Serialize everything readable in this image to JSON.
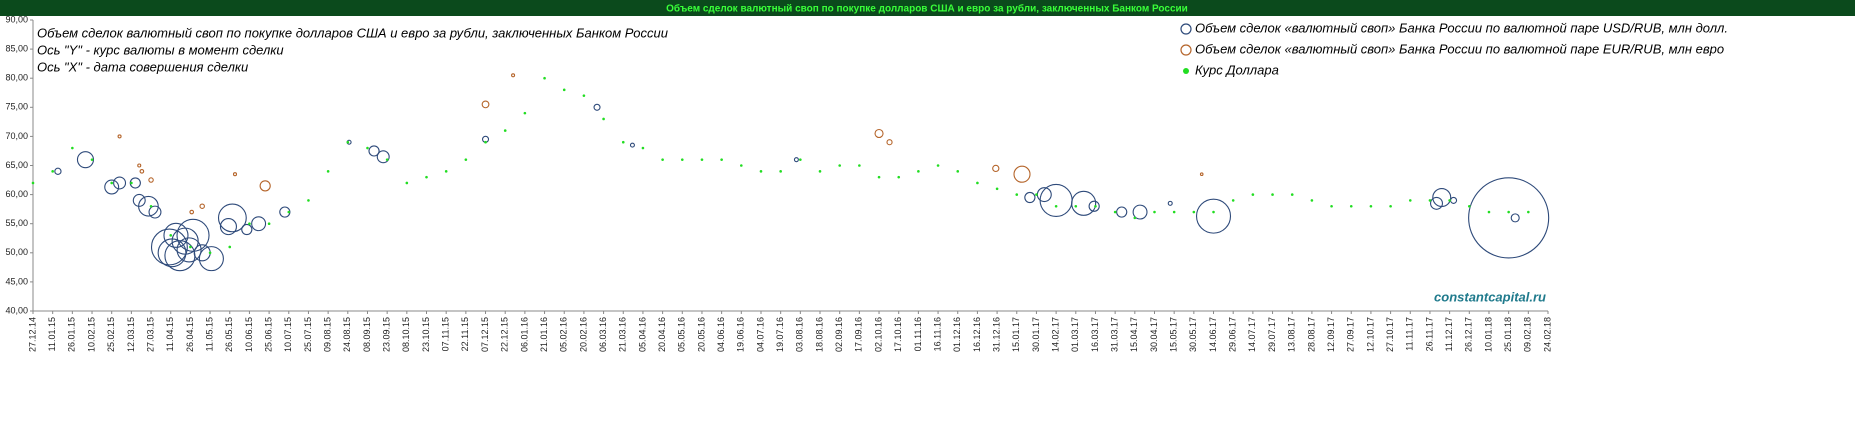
{
  "chart_data": {
    "type": "bubble",
    "title": "Объем сделок валютный своп по покупке долларов США и евро за рубли, заключенных Банком России",
    "annotations": [
      "Объем сделок валютный своп по покупке долларов США и евро за рубли, заключенных Банком России",
      "Ось \"Y\" -  курс валюты в момент сделки",
      "Ось \"X\" -  дата совершения сделки"
    ],
    "watermark": "constantcapital.ru",
    "ylim": [
      40,
      90
    ],
    "yticks": [
      {
        "value": 40,
        "label": "40,00"
      },
      {
        "value": 45,
        "label": "45,00"
      },
      {
        "value": 50,
        "label": "50,00"
      },
      {
        "value": 55,
        "label": "55,00"
      },
      {
        "value": 60,
        "label": "60,00"
      },
      {
        "value": 65,
        "label": "65,00"
      },
      {
        "value": 70,
        "label": "70,00"
      },
      {
        "value": 75,
        "label": "75,00"
      },
      {
        "value": 80,
        "label": "80,00"
      },
      {
        "value": 85,
        "label": "85,00"
      },
      {
        "value": 90,
        "label": "90,00"
      }
    ],
    "xlim": [
      "2014-12-27",
      "2018-02-24"
    ],
    "xticks": [
      {
        "value": "2014-12-27",
        "label": "27.12.14"
      },
      {
        "value": "2015-01-11",
        "label": "11.01.15"
      },
      {
        "value": "2015-01-26",
        "label": "26.01.15"
      },
      {
        "value": "2015-02-10",
        "label": "10.02.15"
      },
      {
        "value": "2015-02-25",
        "label": "25.02.15"
      },
      {
        "value": "2015-03-12",
        "label": "12.03.15"
      },
      {
        "value": "2015-03-27",
        "label": "27.03.15"
      },
      {
        "value": "2015-04-11",
        "label": "11.04.15"
      },
      {
        "value": "2015-04-26",
        "label": "26.04.15"
      },
      {
        "value": "2015-05-11",
        "label": "11.05.15"
      },
      {
        "value": "2015-05-26",
        "label": "26.05.15"
      },
      {
        "value": "2015-06-10",
        "label": "10.06.15"
      },
      {
        "value": "2015-06-25",
        "label": "25.06.15"
      },
      {
        "value": "2015-07-10",
        "label": "10.07.15"
      },
      {
        "value": "2015-07-25",
        "label": "25.07.15"
      },
      {
        "value": "2015-08-09",
        "label": "09.08.15"
      },
      {
        "value": "2015-08-24",
        "label": "24.08.15"
      },
      {
        "value": "2015-09-08",
        "label": "08.09.15"
      },
      {
        "value": "2015-09-23",
        "label": "23.09.15"
      },
      {
        "value": "2015-10-08",
        "label": "08.10.15"
      },
      {
        "value": "2015-10-23",
        "label": "23.10.15"
      },
      {
        "value": "2015-11-07",
        "label": "07.11.15"
      },
      {
        "value": "2015-11-22",
        "label": "22.11.15"
      },
      {
        "value": "2015-12-07",
        "label": "07.12.15"
      },
      {
        "value": "2015-12-22",
        "label": "22.12.15"
      },
      {
        "value": "2016-01-06",
        "label": "06.01.16"
      },
      {
        "value": "2016-01-21",
        "label": "21.01.16"
      },
      {
        "value": "2016-02-05",
        "label": "05.02.16"
      },
      {
        "value": "2016-02-20",
        "label": "20.02.16"
      },
      {
        "value": "2016-03-06",
        "label": "06.03.16"
      },
      {
        "value": "2016-03-21",
        "label": "21.03.16"
      },
      {
        "value": "2016-04-05",
        "label": "05.04.16"
      },
      {
        "value": "2016-04-20",
        "label": "20.04.16"
      },
      {
        "value": "2016-05-05",
        "label": "05.05.16"
      },
      {
        "value": "2016-05-20",
        "label": "20.05.16"
      },
      {
        "value": "2016-06-04",
        "label": "04.06.16"
      },
      {
        "value": "2016-06-19",
        "label": "19.06.16"
      },
      {
        "value": "2016-07-04",
        "label": "04.07.16"
      },
      {
        "value": "2016-07-19",
        "label": "19.07.16"
      },
      {
        "value": "2016-08-03",
        "label": "03.08.16"
      },
      {
        "value": "2016-08-18",
        "label": "18.08.16"
      },
      {
        "value": "2016-09-02",
        "label": "02.09.16"
      },
      {
        "value": "2016-09-17",
        "label": "17.09.16"
      },
      {
        "value": "2016-10-02",
        "label": "02.10.16"
      },
      {
        "value": "2016-10-17",
        "label": "17.10.16"
      },
      {
        "value": "2016-11-01",
        "label": "01.11.16"
      },
      {
        "value": "2016-11-16",
        "label": "16.11.16"
      },
      {
        "value": "2016-12-01",
        "label": "01.12.16"
      },
      {
        "value": "2016-12-16",
        "label": "16.12.16"
      },
      {
        "value": "2016-12-31",
        "label": "31.12.16"
      },
      {
        "value": "2017-01-15",
        "label": "15.01.17"
      },
      {
        "value": "2017-01-30",
        "label": "30.01.17"
      },
      {
        "value": "2017-02-14",
        "label": "14.02.17"
      },
      {
        "value": "2017-03-01",
        "label": "01.03.17"
      },
      {
        "value": "2017-03-16",
        "label": "16.03.17"
      },
      {
        "value": "2017-03-31",
        "label": "31.03.17"
      },
      {
        "value": "2017-04-15",
        "label": "15.04.17"
      },
      {
        "value": "2017-04-30",
        "label": "30.04.17"
      },
      {
        "value": "2017-05-15",
        "label": "15.05.17"
      },
      {
        "value": "2017-05-30",
        "label": "30.05.17"
      },
      {
        "value": "2017-06-14",
        "label": "14.06.17"
      },
      {
        "value": "2017-06-29",
        "label": "29.06.17"
      },
      {
        "value": "2017-07-14",
        "label": "14.07.17"
      },
      {
        "value": "2017-07-29",
        "label": "29.07.17"
      },
      {
        "value": "2017-08-13",
        "label": "13.08.17"
      },
      {
        "value": "2017-08-28",
        "label": "28.08.17"
      },
      {
        "value": "2017-09-12",
        "label": "12.09.17"
      },
      {
        "value": "2017-09-27",
        "label": "27.09.17"
      },
      {
        "value": "2017-10-12",
        "label": "12.10.17"
      },
      {
        "value": "2017-10-27",
        "label": "27.10.17"
      },
      {
        "value": "2017-11-11",
        "label": "11.11.17"
      },
      {
        "value": "2017-11-26",
        "label": "26.11.17"
      },
      {
        "value": "2017-12-11",
        "label": "11.12.17"
      },
      {
        "value": "2017-12-26",
        "label": "26.12.17"
      },
      {
        "value": "2018-01-10",
        "label": "10.01.18"
      },
      {
        "value": "2018-01-25",
        "label": "25.01.18"
      },
      {
        "value": "2018-02-09",
        "label": "09.02.18"
      },
      {
        "value": "2018-02-24",
        "label": "24.02.18"
      }
    ],
    "series": [
      {
        "name": "Объем сделок «валютный своп» Банка  России по валютной паре USD/RUB, млн долл.",
        "color": "#2e4a7a",
        "marker": "ring",
        "x": [
          "2015-01-15",
          "2015-02-05",
          "2015-02-25",
          "2015-03-03",
          "2015-03-15",
          "2015-03-18",
          "2015-03-25",
          "2015-03-30",
          "2015-04-10",
          "2015-04-12",
          "2015-04-15",
          "2015-04-18",
          "2015-04-22",
          "2015-04-25",
          "2015-04-28",
          "2015-05-05",
          "2015-05-12",
          "2015-05-25",
          "2015-05-28",
          "2015-06-08",
          "2015-06-17",
          "2015-07-07",
          "2015-08-25",
          "2015-09-13",
          "2015-09-20",
          "2015-12-07",
          "2016-03-01",
          "2016-03-28",
          "2016-07-31",
          "2017-01-25",
          "2017-02-05",
          "2017-02-14",
          "2017-03-07",
          "2017-03-15",
          "2017-04-05",
          "2017-04-19",
          "2017-05-12",
          "2017-06-14",
          "2017-12-01",
          "2017-12-05",
          "2017-12-14",
          "2018-01-25",
          "2018-01-30"
        ],
        "y": [
          64,
          66,
          61.3,
          62,
          62,
          59,
          58,
          57,
          51,
          50,
          53,
          49.5,
          52,
          50.5,
          53,
          50,
          49,
          54.5,
          56,
          54,
          55,
          57,
          69,
          67.5,
          66.5,
          69.5,
          75,
          68.5,
          66,
          59.5,
          60,
          59,
          58.5,
          58,
          57,
          57,
          58.5,
          56.3,
          58.5,
          59.5,
          59,
          56,
          56
        ],
        "sizes": [
          30,
          200,
          150,
          110,
          80,
          110,
          300,
          110,
          1000,
          600,
          450,
          700,
          530,
          450,
          800,
          200,
          450,
          200,
          600,
          80,
          150,
          80,
          12,
          80,
          110,
          28,
          28,
          12,
          12,
          80,
          150,
          800,
          450,
          80,
          80,
          150,
          12,
          900,
          110,
          250,
          28,
          5000,
          50
        ]
      },
      {
        "name": "Объем сделок «валютный своп» Банка  России по валютной паре EUR/RUB, млн евро",
        "color": "#b5652b",
        "marker": "ring",
        "x": [
          "2015-03-03",
          "2015-03-18",
          "2015-03-20",
          "2015-03-27",
          "2015-04-27",
          "2015-05-05",
          "2015-05-30",
          "2015-06-22",
          "2015-12-07",
          "2015-12-28",
          "2016-10-02",
          "2016-10-10",
          "2016-12-30",
          "2017-01-19",
          "2017-06-05"
        ],
        "y": [
          70,
          65,
          64,
          62.5,
          57,
          58,
          63.5,
          61.5,
          75.5,
          80.5,
          70.5,
          69,
          64.5,
          63.5,
          63.5
        ],
        "sizes": [
          7,
          7,
          10,
          15,
          10,
          15,
          7,
          80,
          35,
          7,
          50,
          20,
          30,
          200,
          5
        ]
      },
      {
        "name": "Курс Доллара",
        "color": "#22dd22",
        "marker": "dot",
        "x": [
          "2014-12-27",
          "2015-01-11",
          "2015-01-26",
          "2015-02-10",
          "2015-02-25",
          "2015-03-12",
          "2015-03-27",
          "2015-04-11",
          "2015-04-26",
          "2015-05-11",
          "2015-05-26",
          "2015-06-10",
          "2015-06-25",
          "2015-07-10",
          "2015-07-25",
          "2015-08-09",
          "2015-08-24",
          "2015-09-08",
          "2015-09-23",
          "2015-10-08",
          "2015-10-23",
          "2015-11-07",
          "2015-11-22",
          "2015-12-07",
          "2015-12-22",
          "2016-01-06",
          "2016-01-21",
          "2016-02-05",
          "2016-02-20",
          "2016-03-06",
          "2016-03-21",
          "2016-04-05",
          "2016-04-20",
          "2016-05-05",
          "2016-05-20",
          "2016-06-04",
          "2016-06-19",
          "2016-07-04",
          "2016-07-19",
          "2016-08-03",
          "2016-08-18",
          "2016-09-02",
          "2016-09-17",
          "2016-10-02",
          "2016-10-17",
          "2016-11-01",
          "2016-11-16",
          "2016-12-01",
          "2016-12-16",
          "2016-12-31",
          "2017-01-15",
          "2017-01-30",
          "2017-02-14",
          "2017-03-01",
          "2017-03-16",
          "2017-03-31",
          "2017-04-15",
          "2017-04-30",
          "2017-05-15",
          "2017-05-30",
          "2017-06-14",
          "2017-06-29",
          "2017-07-14",
          "2017-07-29",
          "2017-08-13",
          "2017-08-28",
          "2017-09-12",
          "2017-09-27",
          "2017-10-12",
          "2017-10-27",
          "2017-11-11",
          "2017-11-26",
          "2017-12-11",
          "2017-12-26",
          "2018-01-10",
          "2018-01-25",
          "2018-02-09"
        ],
        "y": [
          62,
          64,
          68,
          66,
          62,
          62,
          58,
          53,
          51,
          50,
          51,
          55,
          55,
          57,
          59,
          64,
          69,
          68,
          66,
          62,
          63,
          64,
          66,
          69,
          71,
          74,
          80,
          78,
          77,
          73,
          69,
          68,
          66,
          66,
          66,
          66,
          65,
          64,
          64,
          66,
          64,
          65,
          65,
          63,
          63,
          64,
          65,
          64,
          62,
          61,
          60,
          60,
          58,
          58,
          58,
          57,
          56,
          57,
          57,
          57,
          57,
          59,
          60,
          60,
          60,
          59,
          58,
          58,
          58,
          58,
          59,
          59,
          59,
          58,
          57,
          57,
          57
        ]
      }
    ]
  }
}
